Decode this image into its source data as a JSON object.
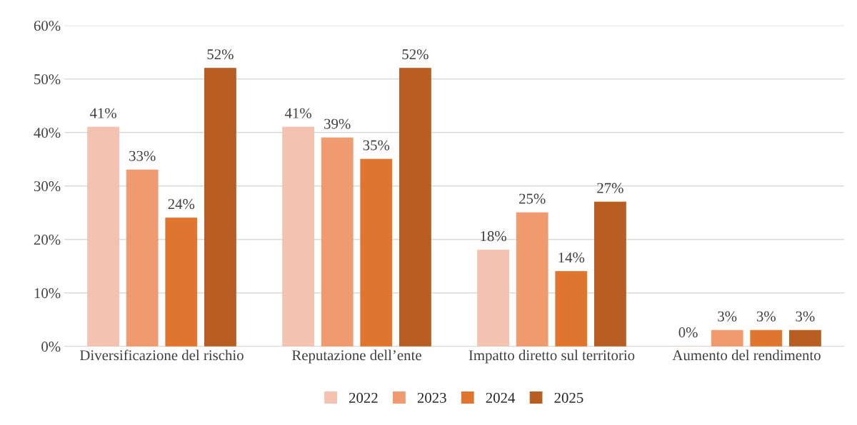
{
  "chart_data": {
    "type": "bar",
    "categories": [
      "Diversificazione del rischio",
      "Reputazione dell’ente",
      "Impatto diretto sul territorio",
      "Aumento del rendimento"
    ],
    "series": [
      {
        "name": "2022",
        "color": "#f4c2b0",
        "values": [
          41,
          41,
          18,
          0
        ],
        "value_labels": [
          "41%",
          "41%",
          "18%",
          "0%"
        ]
      },
      {
        "name": "2023",
        "color": "#f09a70",
        "values": [
          33,
          39,
          25,
          3
        ],
        "value_labels": [
          "33%",
          "39%",
          "25%",
          "3%"
        ]
      },
      {
        "name": "2024",
        "color": "#e07530",
        "values": [
          24,
          35,
          14,
          3
        ],
        "value_labels": [
          "24%",
          "35%",
          "14%",
          "3%"
        ]
      },
      {
        "name": "2025",
        "color": "#b85e22",
        "values": [
          52,
          52,
          27,
          3
        ],
        "value_labels": [
          "52%",
          "52%",
          "27%",
          "3%"
        ]
      }
    ],
    "ylim": [
      0,
      60
    ],
    "yticks": [
      {
        "value": 0,
        "label": "0%"
      },
      {
        "value": 10,
        "label": "10%"
      },
      {
        "value": 20,
        "label": "20%"
      },
      {
        "value": 30,
        "label": "30%"
      },
      {
        "value": 40,
        "label": "40%"
      },
      {
        "value": 50,
        "label": "50%"
      },
      {
        "value": 60,
        "label": "60%"
      }
    ],
    "grid": "y",
    "legend": "bottom"
  }
}
